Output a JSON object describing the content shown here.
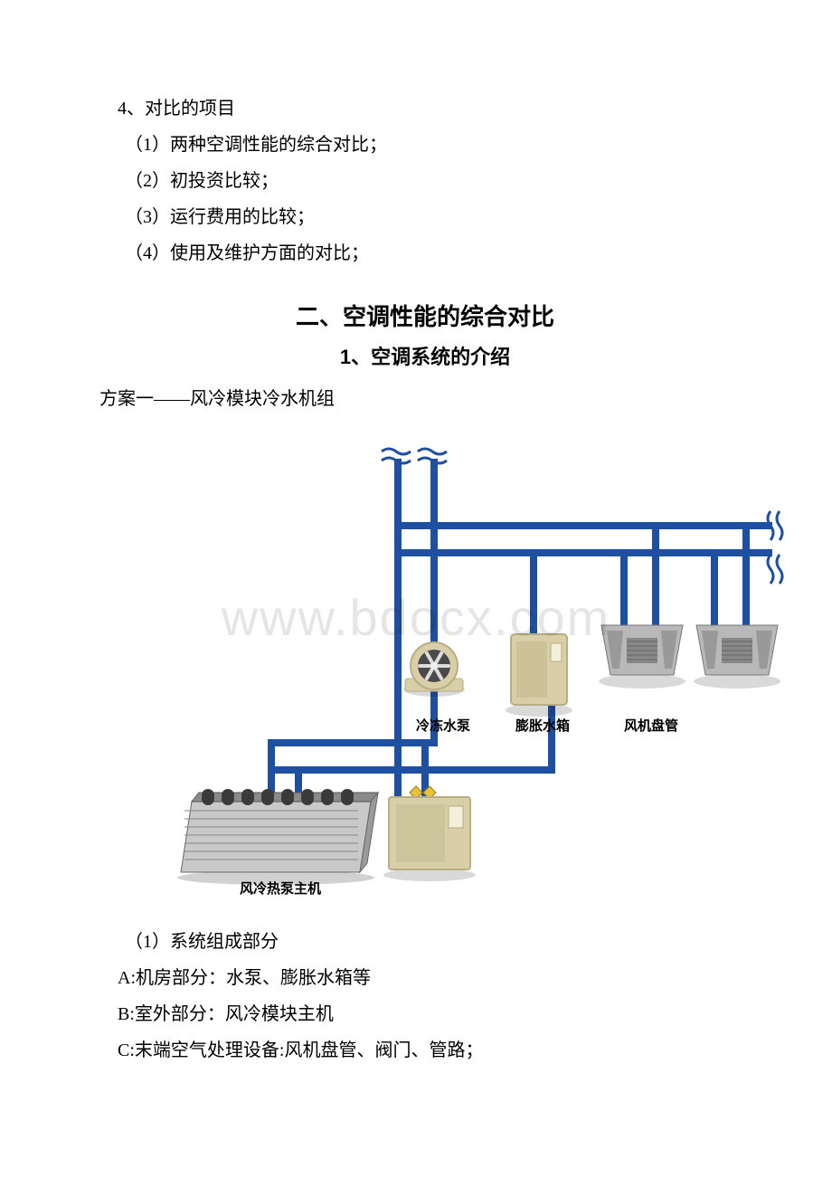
{
  "list_heading": "4、对比的项目",
  "list_items": [
    "（1）两种空调性能的综合对比；",
    "（2）初投资比较；",
    "（3）运行费用的比较；",
    "（4）使用及维护方面的对比；"
  ],
  "section_title": "二、空调性能的综合对比",
  "sub_title": "1、空调系统的介绍",
  "scheme_line": "方案一——风冷模块冷水机组",
  "watermark": "www.bdocx.com",
  "diagram": {
    "pipe_color": "#1f4fa1",
    "pipe_width": 8,
    "labels": {
      "pump": "冷冻水泵",
      "tank": "膨胀水箱",
      "fcu": "风机盘管",
      "host": "风冷热泵主机"
    },
    "colors": {
      "equipment_body": "#d8cfa8",
      "equipment_shadow": "#b8ae85",
      "equipment_dark": "#6b6b6b",
      "fan_dark": "#4a4a4a",
      "cassette_body": "#b8b8b8",
      "cassette_grill": "#888888",
      "host_body": "#c9c9c9",
      "host_panel": "#8a8a8a",
      "valve": "#e7c23a"
    }
  },
  "after_diagram": {
    "p1": "（1）系统组成部分",
    "p2": "A:机房部分：水泵、膨胀水箱等",
    "p3": "B:室外部分：风冷模块主机",
    "p4": "C:末端空气处理设备:风机盘管、阀门、管路；"
  }
}
